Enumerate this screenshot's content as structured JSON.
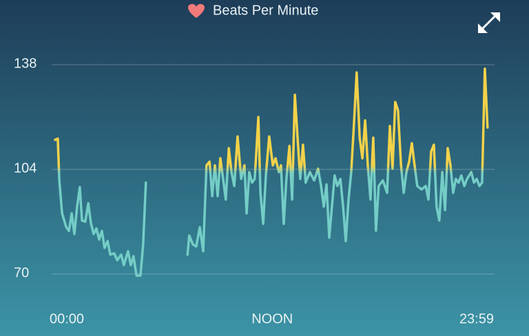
{
  "chart_data": {
    "type": "line",
    "title": "Beats Per Minute",
    "x": [
      0,
      9,
      14,
      23,
      37,
      46,
      55,
      64,
      73,
      82,
      89,
      100,
      110,
      119,
      128,
      137,
      146,
      155,
      164,
      174,
      183,
      196,
      206,
      219,
      228,
      242,
      251,
      260,
      270,
      283,
      292,
      301,
      null,
      439,
      445,
      457,
      468,
      480,
      491,
      502,
      512,
      521,
      530,
      539,
      548,
      557,
      566,
      576,
      585,
      594,
      605,
      617,
      628,
      635,
      644,
      653,
      662,
      674,
      681,
      690,
      699,
      710,
      722,
      731,
      742,
      749,
      758,
      767,
      777,
      786,
      795,
      804,
      813,
      822,
      831,
      845,
      859,
      872,
      882,
      891,
      900,
      909,
      918,
      927,
      936,
      946,
      955,
      964,
      973,
      982,
      991,
      1000,
      1010,
      1019,
      1028,
      1037,
      1046,
      1055,
      1064,
      1073,
      1087,
      1101,
      1110,
      1119,
      1128,
      1137,
      1147,
      1156,
      1165,
      1174,
      1183,
      1192,
      1201,
      1215,
      1229,
      1238,
      1247,
      1256,
      1265,
      1274,
      1284,
      1293,
      1302,
      1311,
      1320,
      1329,
      1338,
      1347,
      1357,
      1366,
      1380,
      1389,
      1398,
      1407,
      1416,
      1425,
      1434
    ],
    "series": [
      {
        "values": [
          113.6,
          114,
          100.4,
          89.7,
          85.2,
          84,
          89.7,
          83,
          92,
          98.2,
          87.4,
          87,
          93,
          86.4,
          83,
          84.8,
          81.2,
          84,
          78.5,
          80.7,
          76.3,
          76.7,
          74.5,
          76.3,
          72.9,
          77.4,
          72.9,
          75.8,
          69.5,
          69.5,
          79.6,
          99.7,
          null,
          76.3,
          82.5,
          79.6,
          79,
          85.2,
          77.4,
          105.3,
          106.5,
          95.3,
          105.3,
          95.3,
          107.6,
          100.9,
          94.2,
          110.9,
          103.1,
          98.6,
          114.7,
          100.9,
          105.3,
          89.7,
          103.1,
          99.7,
          100.9,
          121,
          96.4,
          86.3,
          102,
          114.7,
          105.3,
          107.6,
          103.1,
          105.3,
          86.3,
          100.9,
          111.6,
          94.2,
          128.2,
          114.3,
          100.9,
          112,
          99.7,
          103.1,
          100.4,
          104.2,
          98.6,
          91.9,
          99.1,
          81.8,
          91.9,
          102,
          98.6,
          100.9,
          91.9,
          80.7,
          94.2,
          103.1,
          118.8,
          135.5,
          114.3,
          107.6,
          119.9,
          105.3,
          94.2,
          114.3,
          84.1,
          98.6,
          100.4,
          96.4,
          118.1,
          104.2,
          125.9,
          123.2,
          105.3,
          96.4,
          103.1,
          106.5,
          112.5,
          105.3,
          98.6,
          97.5,
          98.6,
          94.2,
          109.8,
          112,
          91.9,
          87.4,
          103.1,
          90.8,
          110.9,
          105.3,
          96.4,
          100.9,
          99.7,
          102,
          98.6,
          100.9,
          103.1,
          99.7,
          100.9,
          98.6,
          99.7,
          136.7,
          117.6
        ]
      }
    ],
    "colors": {
      "low": "#74cdc6",
      "high": "#f3d24a"
    },
    "color_split": 104,
    "xlim": [
      0,
      1439
    ],
    "xticks": [
      {
        "value": 0,
        "label": "00:00"
      },
      {
        "value": 720,
        "label": "NOON"
      },
      {
        "value": 1439,
        "label": "23:59"
      }
    ],
    "ylim": [
      64,
      144
    ],
    "yticks": [
      70,
      104,
      138
    ],
    "grid": true
  }
}
